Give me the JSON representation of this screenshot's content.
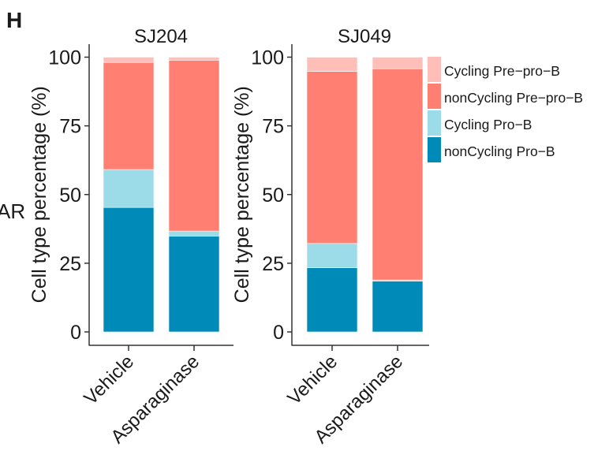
{
  "panel_letter": "H",
  "cropped_left_text": "AR",
  "chart_data": [
    {
      "type": "bar",
      "stacked": true,
      "title": "SJ204",
      "ylabel": "Cell type percentage (%)",
      "xlabel": "",
      "ylim": [
        0,
        100
      ],
      "yticks": [
        "0",
        "25",
        "50",
        "75",
        "100"
      ],
      "categories": [
        "Vehicle",
        "Asparaginase"
      ],
      "grid": false,
      "series": [
        {
          "name": "nonCycling Pro−B",
          "color": "#008AB8",
          "values": [
            45.3,
            34.9
          ]
        },
        {
          "name": "Cycling Pro−B",
          "color": "#9BDCE8",
          "values": [
            13.8,
            1.8
          ]
        },
        {
          "name": "nonCycling Pre−pro−B",
          "color": "#FF7F72",
          "values": [
            39.0,
            62.2
          ]
        },
        {
          "name": "Cycling Pre−pro−B",
          "color": "#FFBFB8",
          "values": [
            1.9,
            1.1
          ]
        }
      ]
    },
    {
      "type": "bar",
      "stacked": true,
      "title": "SJ049",
      "ylabel": "Cell type percentage (%)",
      "xlabel": "",
      "ylim": [
        0,
        100
      ],
      "yticks": [
        "0",
        "25",
        "50",
        "75",
        "100"
      ],
      "categories": [
        "Vehicle",
        "Asparaginase"
      ],
      "grid": false,
      "series": [
        {
          "name": "nonCycling Pro−B",
          "color": "#008AB8",
          "values": [
            23.4,
            18.5
          ]
        },
        {
          "name": "Cycling Pro−B",
          "color": "#9BDCE8",
          "values": [
            8.8,
            0.4
          ]
        },
        {
          "name": "nonCycling Pre−pro−B",
          "color": "#FF7F72",
          "values": [
            62.6,
            76.9
          ]
        },
        {
          "name": "Cycling Pre−pro−B",
          "color": "#FFBFB8",
          "values": [
            5.2,
            4.2
          ]
        }
      ]
    }
  ],
  "legend": {
    "placement": "right",
    "items": [
      {
        "label": "Cycling Pre−pro−B",
        "color": "#FFBFB8"
      },
      {
        "label": "nonCycling Pre−pro−B",
        "color": "#FF7F72"
      },
      {
        "label": "Cycling Pro−B",
        "color": "#9BDCE8"
      },
      {
        "label": "nonCycling Pro−B",
        "color": "#008AB8"
      }
    ]
  }
}
